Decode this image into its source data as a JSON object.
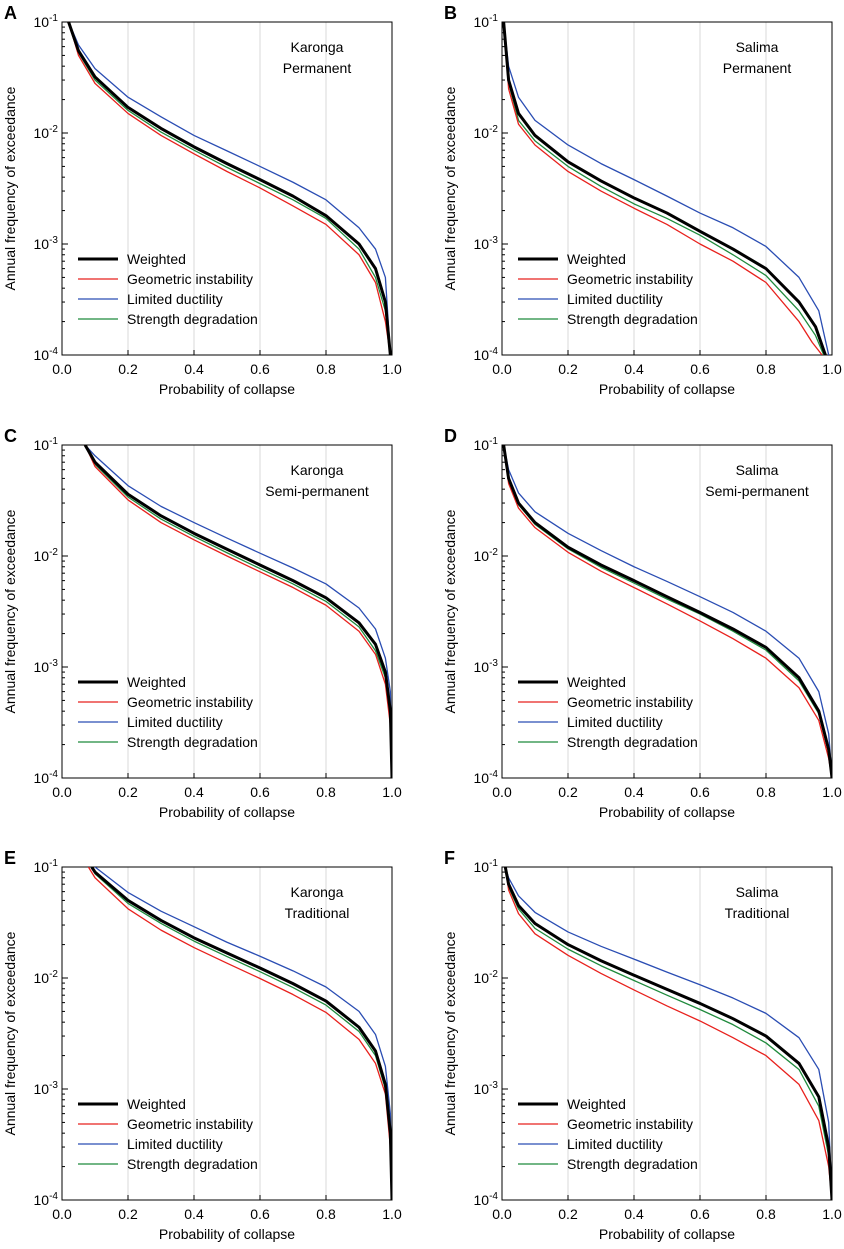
{
  "figure": {
    "xlabel": "Probability of collapse",
    "ylabel": "Annual frequency of exceedance",
    "x_ticks": [
      "0.0",
      "0.2",
      "0.4",
      "0.6",
      "0.8",
      "1.0"
    ],
    "y_ticks": [
      {
        "base": "10",
        "exp": "-1"
      },
      {
        "base": "10",
        "exp": "-2"
      },
      {
        "base": "10",
        "exp": "-3"
      },
      {
        "base": "10",
        "exp": "-4"
      }
    ],
    "legend": [
      {
        "label": "Weighted",
        "color": "#000000"
      },
      {
        "label": "Geometric instability",
        "color": "#e8211d"
      },
      {
        "label": "Limited ductility",
        "color": "#2a4db3"
      },
      {
        "label": "Strength degradation",
        "color": "#1f8a3c"
      }
    ]
  },
  "chart_data": [
    {
      "panel": "A",
      "type": "line",
      "line1": "Karonga",
      "line2": "Permanent",
      "xlim": [
        0,
        1
      ],
      "ylim": [
        0.0001,
        0.1
      ],
      "yscale": "log",
      "series": [
        {
          "name": "Weighted",
          "x": [
            0.02,
            0.05,
            0.1,
            0.2,
            0.3,
            0.4,
            0.5,
            0.6,
            0.7,
            0.8,
            0.9,
            0.95,
            0.98,
            0.995
          ],
          "y": [
            0.1,
            0.055,
            0.032,
            0.017,
            0.011,
            0.0075,
            0.0053,
            0.0038,
            0.0027,
            0.0018,
            0.001,
            0.0006,
            0.0003,
            0.0001
          ]
        },
        {
          "name": "Geometric instability",
          "x": [
            0.02,
            0.05,
            0.1,
            0.2,
            0.3,
            0.4,
            0.5,
            0.6,
            0.7,
            0.8,
            0.9,
            0.95,
            0.98,
            0.995
          ],
          "y": [
            0.1,
            0.05,
            0.028,
            0.015,
            0.0095,
            0.0065,
            0.0045,
            0.0032,
            0.0022,
            0.0015,
            0.0008,
            0.00045,
            0.0002,
            0.0001
          ]
        },
        {
          "name": "Limited ductility",
          "x": [
            0.02,
            0.05,
            0.1,
            0.2,
            0.3,
            0.4,
            0.5,
            0.6,
            0.7,
            0.8,
            0.9,
            0.95,
            0.98,
            0.995
          ],
          "y": [
            0.1,
            0.062,
            0.038,
            0.021,
            0.014,
            0.0095,
            0.0069,
            0.005,
            0.0036,
            0.0025,
            0.0014,
            0.0009,
            0.0005,
            0.0001
          ]
        },
        {
          "name": "Strength degradation",
          "x": [
            0.02,
            0.05,
            0.1,
            0.2,
            0.3,
            0.4,
            0.5,
            0.6,
            0.7,
            0.8,
            0.9,
            0.95,
            0.98,
            0.995
          ],
          "y": [
            0.1,
            0.053,
            0.03,
            0.016,
            0.0102,
            0.007,
            0.0049,
            0.0035,
            0.0025,
            0.0017,
            0.0009,
            0.0005,
            0.00025,
            0.0001
          ]
        }
      ]
    },
    {
      "panel": "B",
      "type": "line",
      "line1": "Salima",
      "line2": "Permanent",
      "xlim": [
        0,
        1
      ],
      "ylim": [
        0.0001,
        0.1
      ],
      "yscale": "log",
      "series": [
        {
          "name": "Weighted",
          "x": [
            0.005,
            0.02,
            0.05,
            0.1,
            0.2,
            0.3,
            0.4,
            0.5,
            0.6,
            0.7,
            0.8,
            0.9,
            0.95,
            0.98
          ],
          "y": [
            0.1,
            0.03,
            0.015,
            0.0095,
            0.0055,
            0.0037,
            0.0026,
            0.0019,
            0.0013,
            0.0009,
            0.0006,
            0.0003,
            0.00018,
            0.0001
          ]
        },
        {
          "name": "Geometric instability",
          "x": [
            0.005,
            0.02,
            0.05,
            0.1,
            0.2,
            0.3,
            0.4,
            0.5,
            0.6,
            0.7,
            0.8,
            0.9,
            0.94,
            0.97
          ],
          "y": [
            0.1,
            0.025,
            0.012,
            0.0078,
            0.0045,
            0.003,
            0.0021,
            0.0015,
            0.001,
            0.0007,
            0.00045,
            0.0002,
            0.00013,
            0.0001
          ]
        },
        {
          "name": "Limited ductility",
          "x": [
            0.005,
            0.02,
            0.05,
            0.1,
            0.2,
            0.3,
            0.4,
            0.5,
            0.6,
            0.7,
            0.8,
            0.9,
            0.96,
            0.99
          ],
          "y": [
            0.1,
            0.04,
            0.021,
            0.013,
            0.0078,
            0.0053,
            0.0038,
            0.0027,
            0.0019,
            0.0014,
            0.00095,
            0.0005,
            0.00025,
            0.0001
          ]
        },
        {
          "name": "Strength degradation",
          "x": [
            0.005,
            0.02,
            0.05,
            0.1,
            0.2,
            0.3,
            0.4,
            0.5,
            0.6,
            0.7,
            0.8,
            0.9,
            0.95,
            0.975
          ],
          "y": [
            0.1,
            0.028,
            0.013,
            0.0085,
            0.005,
            0.0033,
            0.0023,
            0.0017,
            0.0012,
            0.0008,
            0.00052,
            0.00025,
            0.00015,
            0.0001
          ]
        }
      ]
    },
    {
      "panel": "C",
      "type": "line",
      "line1": "Karonga",
      "line2": "Semi-permanent",
      "xlim": [
        0,
        1
      ],
      "ylim": [
        0.0001,
        0.1
      ],
      "yscale": "log",
      "series": [
        {
          "name": "Weighted",
          "x": [
            0.07,
            0.1,
            0.2,
            0.3,
            0.4,
            0.5,
            0.6,
            0.7,
            0.8,
            0.9,
            0.95,
            0.98,
            0.995,
            1.0
          ],
          "y": [
            0.1,
            0.07,
            0.036,
            0.023,
            0.016,
            0.0115,
            0.0083,
            0.006,
            0.0042,
            0.0025,
            0.0016,
            0.0009,
            0.0004,
            0.0001
          ]
        },
        {
          "name": "Geometric instability",
          "x": [
            0.07,
            0.1,
            0.2,
            0.3,
            0.4,
            0.5,
            0.6,
            0.7,
            0.8,
            0.9,
            0.95,
            0.98,
            0.995,
            1.0
          ],
          "y": [
            0.1,
            0.064,
            0.032,
            0.02,
            0.014,
            0.01,
            0.0072,
            0.0052,
            0.0036,
            0.0021,
            0.0013,
            0.0007,
            0.0003,
            0.0001
          ]
        },
        {
          "name": "Limited ductility",
          "x": [
            0.07,
            0.1,
            0.2,
            0.3,
            0.4,
            0.5,
            0.6,
            0.7,
            0.8,
            0.9,
            0.95,
            0.98,
            0.995,
            1.0
          ],
          "y": [
            0.1,
            0.08,
            0.043,
            0.028,
            0.02,
            0.0145,
            0.0106,
            0.0078,
            0.0056,
            0.0034,
            0.0022,
            0.0012,
            0.0006,
            0.0001
          ]
        },
        {
          "name": "Strength degradation",
          "x": [
            0.07,
            0.1,
            0.2,
            0.3,
            0.4,
            0.5,
            0.6,
            0.7,
            0.8,
            0.9,
            0.95,
            0.98,
            0.995,
            1.0
          ],
          "y": [
            0.1,
            0.067,
            0.034,
            0.0215,
            0.015,
            0.0107,
            0.0077,
            0.0056,
            0.0039,
            0.0023,
            0.0014,
            0.0008,
            0.00035,
            0.0001
          ]
        }
      ]
    },
    {
      "panel": "D",
      "type": "line",
      "line1": "Salima",
      "line2": "Semi-permanent",
      "xlim": [
        0,
        1
      ],
      "ylim": [
        0.0001,
        0.1
      ],
      "yscale": "log",
      "series": [
        {
          "name": "Weighted",
          "x": [
            0.005,
            0.02,
            0.05,
            0.1,
            0.2,
            0.3,
            0.4,
            0.5,
            0.6,
            0.7,
            0.8,
            0.9,
            0.96,
            0.99,
            1.0
          ],
          "y": [
            0.1,
            0.05,
            0.03,
            0.02,
            0.012,
            0.0083,
            0.006,
            0.0043,
            0.0031,
            0.0022,
            0.0015,
            0.0008,
            0.0004,
            0.00018,
            0.0001
          ]
        },
        {
          "name": "Geometric instability",
          "x": [
            0.005,
            0.02,
            0.05,
            0.1,
            0.2,
            0.3,
            0.4,
            0.5,
            0.6,
            0.7,
            0.8,
            0.9,
            0.96,
            0.99,
            1.0
          ],
          "y": [
            0.1,
            0.045,
            0.027,
            0.018,
            0.0108,
            0.0073,
            0.0052,
            0.0037,
            0.0026,
            0.0018,
            0.0012,
            0.00065,
            0.00033,
            0.00015,
            0.0001
          ]
        },
        {
          "name": "Limited ductility",
          "x": [
            0.005,
            0.02,
            0.05,
            0.1,
            0.2,
            0.3,
            0.4,
            0.5,
            0.6,
            0.7,
            0.8,
            0.9,
            0.96,
            0.99,
            1.0
          ],
          "y": [
            0.1,
            0.06,
            0.037,
            0.025,
            0.016,
            0.0112,
            0.008,
            0.0059,
            0.0043,
            0.0031,
            0.0021,
            0.0012,
            0.0006,
            0.00025,
            0.0001
          ]
        },
        {
          "name": "Strength degradation",
          "x": [
            0.005,
            0.02,
            0.05,
            0.1,
            0.2,
            0.3,
            0.4,
            0.5,
            0.6,
            0.7,
            0.8,
            0.9,
            0.96,
            0.99,
            1.0
          ],
          "y": [
            0.1,
            0.048,
            0.029,
            0.0193,
            0.0116,
            0.0079,
            0.0057,
            0.0041,
            0.003,
            0.0021,
            0.00142,
            0.00075,
            0.00038,
            0.00017,
            0.0001
          ]
        }
      ]
    },
    {
      "panel": "E",
      "type": "line",
      "line1": "Karonga",
      "line2": "Traditional",
      "xlim": [
        0,
        1
      ],
      "ylim": [
        0.0001,
        0.1
      ],
      "yscale": "log",
      "series": [
        {
          "name": "Weighted",
          "x": [
            0.09,
            0.1,
            0.2,
            0.3,
            0.4,
            0.5,
            0.6,
            0.7,
            0.8,
            0.9,
            0.95,
            0.98,
            0.995,
            1.0
          ],
          "y": [
            0.1,
            0.09,
            0.05,
            0.033,
            0.023,
            0.0168,
            0.0123,
            0.0089,
            0.0062,
            0.0036,
            0.0022,
            0.0011,
            0.0004,
            0.0001
          ]
        },
        {
          "name": "Geometric instability",
          "x": [
            0.08,
            0.1,
            0.2,
            0.3,
            0.4,
            0.5,
            0.6,
            0.7,
            0.8,
            0.9,
            0.95,
            0.98,
            0.995,
            1.0
          ],
          "y": [
            0.1,
            0.08,
            0.042,
            0.027,
            0.0188,
            0.0136,
            0.0099,
            0.0071,
            0.0049,
            0.0028,
            0.0017,
            0.0009,
            0.0003,
            0.0001
          ]
        },
        {
          "name": "Limited ductility",
          "x": [
            0.1,
            0.2,
            0.3,
            0.4,
            0.5,
            0.6,
            0.7,
            0.8,
            0.9,
            0.95,
            0.98,
            0.995,
            1.0
          ],
          "y": [
            0.1,
            0.059,
            0.04,
            0.029,
            0.021,
            0.0157,
            0.0116,
            0.0083,
            0.005,
            0.0031,
            0.0016,
            0.0006,
            0.0001
          ]
        },
        {
          "name": "Strength degradation",
          "x": [
            0.09,
            0.1,
            0.2,
            0.3,
            0.4,
            0.5,
            0.6,
            0.7,
            0.8,
            0.9,
            0.95,
            0.98,
            0.995,
            1.0
          ],
          "y": [
            0.1,
            0.087,
            0.047,
            0.031,
            0.0215,
            0.0156,
            0.0114,
            0.0082,
            0.0057,
            0.0033,
            0.002,
            0.001,
            0.00035,
            0.0001
          ]
        }
      ]
    },
    {
      "panel": "F",
      "type": "line",
      "line1": "Salima",
      "line2": "Traditional",
      "xlim": [
        0,
        1
      ],
      "ylim": [
        0.0001,
        0.1
      ],
      "yscale": "log",
      "series": [
        {
          "name": "Weighted",
          "x": [
            0.01,
            0.02,
            0.05,
            0.1,
            0.2,
            0.3,
            0.4,
            0.5,
            0.6,
            0.7,
            0.8,
            0.9,
            0.96,
            0.99,
            1.0
          ],
          "y": [
            0.1,
            0.07,
            0.045,
            0.031,
            0.02,
            0.0143,
            0.0106,
            0.0079,
            0.0059,
            0.0043,
            0.003,
            0.0017,
            0.00085,
            0.0003,
            0.0001
          ]
        },
        {
          "name": "Geometric instability",
          "x": [
            0.01,
            0.02,
            0.05,
            0.1,
            0.2,
            0.3,
            0.4,
            0.5,
            0.6,
            0.7,
            0.8,
            0.9,
            0.96,
            0.99,
            1.0
          ],
          "y": [
            0.1,
            0.062,
            0.038,
            0.025,
            0.016,
            0.011,
            0.0078,
            0.0056,
            0.0041,
            0.0029,
            0.002,
            0.0011,
            0.00052,
            0.0002,
            0.0001
          ]
        },
        {
          "name": "Limited ductility",
          "x": [
            0.01,
            0.02,
            0.05,
            0.1,
            0.2,
            0.3,
            0.4,
            0.5,
            0.6,
            0.7,
            0.8,
            0.9,
            0.96,
            0.99,
            1.0
          ],
          "y": [
            0.1,
            0.08,
            0.055,
            0.039,
            0.026,
            0.0193,
            0.0148,
            0.0113,
            0.0087,
            0.0066,
            0.0048,
            0.0029,
            0.0015,
            0.0005,
            0.0001
          ]
        },
        {
          "name": "Strength degradation",
          "x": [
            0.01,
            0.02,
            0.05,
            0.1,
            0.2,
            0.3,
            0.4,
            0.5,
            0.6,
            0.7,
            0.8,
            0.9,
            0.96,
            0.99,
            1.0
          ],
          "y": [
            0.1,
            0.066,
            0.042,
            0.028,
            0.0182,
            0.0129,
            0.0095,
            0.007,
            0.0052,
            0.0038,
            0.0026,
            0.0015,
            0.0007,
            0.00025,
            0.0001
          ]
        }
      ]
    }
  ]
}
